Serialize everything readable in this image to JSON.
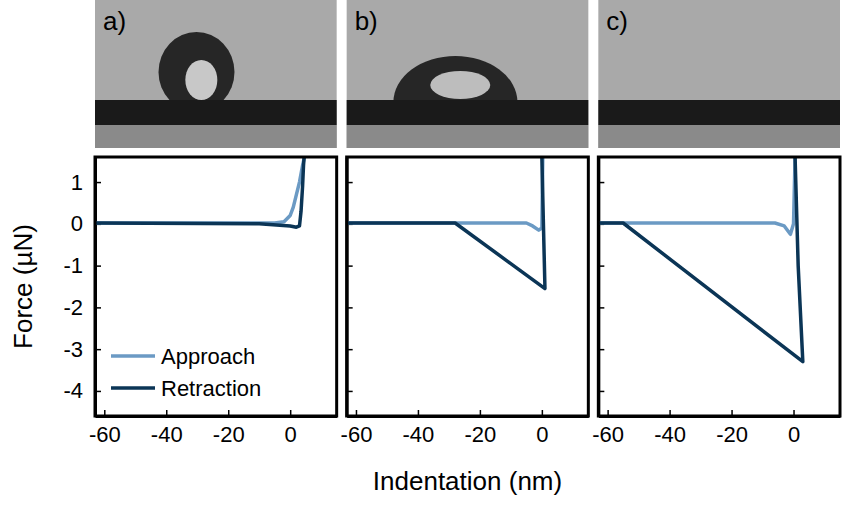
{
  "chart_data": [
    {
      "type": "line",
      "title": "a)",
      "y_label": "Force (µN)",
      "xlim": [
        -63,
        15
      ],
      "xticks": [
        -60,
        -40,
        -20,
        0
      ],
      "ylim": [
        -4.6,
        1.6
      ],
      "yticks": [
        -4,
        -3,
        -2,
        -1,
        0,
        1
      ],
      "legend": "lower left",
      "series": [
        {
          "name": "Approach",
          "color": "#6b9ac4",
          "x": [
            -63,
            -5,
            -2,
            0,
            1,
            2,
            3,
            4,
            4.6
          ],
          "values": [
            0.02,
            0.02,
            0.05,
            0.2,
            0.4,
            0.7,
            1.0,
            1.4,
            1.6
          ]
        },
        {
          "name": "Retraction",
          "color": "#0b3556",
          "x": [
            -63,
            -10,
            0,
            2,
            3,
            3.5,
            4,
            4.3,
            4.5
          ],
          "values": [
            0.02,
            0,
            -0.05,
            -0.08,
            -0.05,
            0.3,
            0.9,
            1.4,
            1.6
          ]
        }
      ]
    },
    {
      "type": "line",
      "title": "b)",
      "x_label": "Indentation (nm)",
      "tick_labels": "x",
      "xlim": [
        -63,
        15
      ],
      "xticks": [
        -60,
        -40,
        -20,
        0
      ],
      "ylim": [
        -4.6,
        1.6
      ],
      "yticks": [
        -4,
        -3,
        -2,
        -1,
        0,
        1
      ],
      "series": [
        {
          "color": "#6b9ac4",
          "x": [
            -63,
            -5,
            -3,
            -1,
            0,
            0.3
          ],
          "values": [
            0.02,
            0.02,
            -0.05,
            -0.15,
            -0.1,
            1.6
          ]
        },
        {
          "color": "#0b3556",
          "x": [
            -63,
            -28,
            1,
            0.5,
            0
          ],
          "values": [
            0.02,
            0.02,
            -1.55,
            0,
            1.6
          ]
        }
      ]
    },
    {
      "type": "line",
      "title": "c)",
      "tick_labels": "x",
      "xlim": [
        -63,
        15
      ],
      "xticks": [
        -60,
        -40,
        -20,
        0
      ],
      "ylim": [
        -4.6,
        1.6
      ],
      "yticks": [
        -4,
        -3,
        -2,
        -1,
        0,
        1
      ],
      "series": [
        {
          "color": "#6b9ac4",
          "x": [
            -63,
            -6,
            -3,
            -1,
            0,
            0.5
          ],
          "values": [
            0.02,
            0.02,
            -0.05,
            -0.25,
            0,
            1.6
          ]
        },
        {
          "color": "#0b3556",
          "x": [
            -63,
            -55,
            3,
            1.5,
            0.5
          ],
          "values": [
            0.02,
            0.02,
            -3.3,
            -1,
            1.6
          ]
        }
      ]
    }
  ]
}
